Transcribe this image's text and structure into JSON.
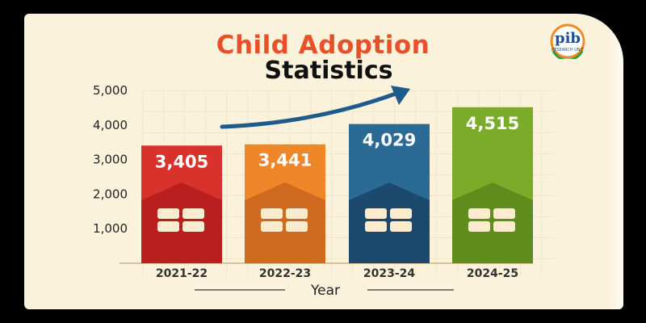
{
  "title": {
    "line1": "Child Adoption",
    "line2": "Statistics"
  },
  "logo": {
    "text": "pib",
    "subtext": "RESEARCH UNIT"
  },
  "colors": {
    "bars": [
      "#d9322d",
      "#f0862a",
      "#2b6a95",
      "#7aac2a"
    ],
    "title_accent": "#e8502a",
    "arrow": "#1e5a8c"
  },
  "chart_data": {
    "type": "bar",
    "title": "Child Adoption Statistics",
    "xlabel": "Year",
    "ylabel": "",
    "categories": [
      "2021-22",
      "2022-23",
      "2023-24",
      "2024-25"
    ],
    "values": [
      3405,
      3441,
      4029,
      4515
    ],
    "value_labels": [
      "3,405",
      "3,441",
      "4,029",
      "4,515"
    ],
    "yticks": [
      1000,
      2000,
      3000,
      4000,
      5000
    ],
    "ytick_labels": [
      "1,000",
      "2,000",
      "3,000",
      "4,000",
      "5,000"
    ],
    "ylim": [
      0,
      5000
    ],
    "grid": true,
    "legend": "none",
    "annotation": "upward-trend-arrow"
  }
}
